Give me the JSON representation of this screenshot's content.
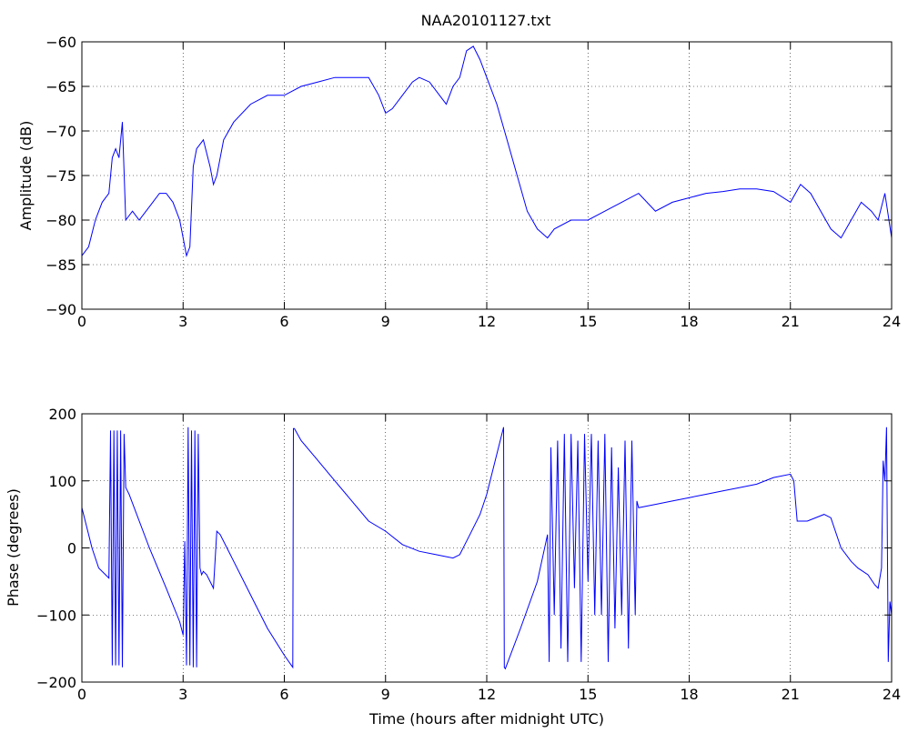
{
  "figure": {
    "title": "NAA20101127.txt"
  },
  "chart_data": [
    {
      "type": "line",
      "title": "NAA20101127.txt",
      "xlabel": "",
      "ylabel": "Amplitude (dB)",
      "xlim": [
        0,
        24
      ],
      "ylim": [
        -90,
        -60
      ],
      "xticks": [
        0,
        3,
        6,
        9,
        12,
        15,
        18,
        21,
        24
      ],
      "yticks": [
        -90,
        -85,
        -80,
        -75,
        -70,
        -65,
        -60
      ],
      "grid": true,
      "color": "#0000ff",
      "series": [
        {
          "x": [
            0.0,
            0.2,
            0.4,
            0.6,
            0.8,
            0.9,
            1.0,
            1.1,
            1.2,
            1.3,
            1.5,
            1.7,
            1.9,
            2.1,
            2.3,
            2.5,
            2.7,
            2.9,
            3.0,
            3.1,
            3.2,
            3.3,
            3.4,
            3.6,
            3.8,
            3.9,
            4.0,
            4.2,
            4.5,
            5.0,
            5.5,
            6.0,
            6.5,
            7.0,
            7.5,
            8.0,
            8.5,
            8.8,
            9.0,
            9.2,
            9.5,
            9.8,
            10.0,
            10.3,
            10.6,
            10.8,
            11.0,
            11.2,
            11.4,
            11.6,
            11.8,
            12.0,
            12.3,
            12.6,
            12.9,
            13.2,
            13.5,
            13.8,
            14.0,
            14.5,
            15.0,
            15.5,
            16.0,
            16.5,
            17.0,
            17.5,
            18.0,
            18.5,
            19.0,
            19.5,
            20.0,
            20.5,
            21.0,
            21.3,
            21.6,
            21.9,
            22.2,
            22.5,
            22.8,
            23.1,
            23.4,
            23.6,
            23.8,
            24.0
          ],
          "y": [
            -84,
            -83,
            -80,
            -78,
            -77,
            -73,
            -72,
            -73,
            -69,
            -80,
            -79,
            -80,
            -79,
            -78,
            -77,
            -77,
            -78,
            -80,
            -82,
            -84,
            -83,
            -74,
            -72,
            -71,
            -74,
            -76,
            -75,
            -71,
            -69,
            -67,
            -66,
            -66,
            -65,
            -64.5,
            -64,
            -64,
            -64,
            -66,
            -68,
            -67.5,
            -66,
            -64.5,
            -64,
            -64.5,
            -66,
            -67,
            -65,
            -64,
            -61,
            -60.5,
            -62,
            -64,
            -67,
            -71,
            -75,
            -79,
            -81,
            -82,
            -81,
            -80,
            -80,
            -79,
            -78,
            -77,
            -79,
            -78,
            -77.5,
            -77,
            -76.8,
            -76.5,
            -76.5,
            -76.8,
            -78,
            -76,
            -77,
            -79,
            -81,
            -82,
            -80,
            -78,
            -79,
            -80,
            -77,
            -82
          ]
        }
      ]
    },
    {
      "type": "line",
      "title": "",
      "xlabel": "Time (hours after midnight UTC)",
      "ylabel": "Phase (degrees)",
      "xlim": [
        0,
        24
      ],
      "ylim": [
        -200,
        200
      ],
      "xticks": [
        0,
        3,
        6,
        9,
        12,
        15,
        18,
        21,
        24
      ],
      "yticks": [
        -200,
        -100,
        0,
        100,
        200
      ],
      "grid": true,
      "color": "#0000ff",
      "series": [
        {
          "x": [
            0.0,
            0.1,
            0.3,
            0.5,
            0.7,
            0.8,
            0.85,
            0.9,
            0.95,
            1.0,
            1.05,
            1.1,
            1.15,
            1.2,
            1.25,
            1.3,
            1.35,
            1.4,
            2.0,
            2.5,
            2.9,
            3.0,
            3.05,
            3.1,
            3.15,
            3.2,
            3.25,
            3.3,
            3.35,
            3.4,
            3.45,
            3.5,
            3.55,
            3.6,
            3.7,
            3.8,
            3.9,
            4.0,
            4.1,
            4.5,
            5.0,
            5.5,
            6.0,
            6.25,
            6.27,
            6.3,
            6.5,
            7.0,
            7.5,
            8.0,
            8.5,
            9.0,
            9.5,
            10.0,
            10.5,
            11.0,
            11.2,
            11.5,
            11.8,
            12.0,
            12.2,
            12.4,
            12.5,
            12.52,
            12.55,
            13.0,
            13.5,
            13.8,
            13.85,
            13.9,
            14.0,
            14.1,
            14.2,
            14.3,
            14.4,
            14.5,
            14.6,
            14.7,
            14.8,
            14.9,
            15.0,
            15.1,
            15.2,
            15.3,
            15.4,
            15.5,
            15.6,
            15.7,
            15.8,
            15.9,
            16.0,
            16.1,
            16.2,
            16.3,
            16.4,
            16.45,
            16.5,
            17.0,
            17.5,
            18.0,
            18.5,
            19.0,
            19.5,
            20.0,
            20.5,
            21.0,
            21.1,
            21.2,
            21.5,
            22.0,
            22.2,
            22.5,
            22.8,
            23.0,
            23.3,
            23.5,
            23.6,
            23.7,
            23.75,
            23.8,
            23.85,
            23.9,
            23.95,
            24.0
          ],
          "y": [
            60,
            40,
            0,
            -30,
            -40,
            -45,
            175,
            -175,
            175,
            -175,
            175,
            -175,
            175,
            -178,
            170,
            90,
            85,
            80,
            0,
            -60,
            -110,
            -130,
            10,
            -175,
            180,
            -175,
            175,
            -178,
            175,
            -178,
            170,
            -30,
            -40,
            -35,
            -40,
            -50,
            -60,
            25,
            20,
            -20,
            -70,
            -120,
            -160,
            -178,
            178,
            178,
            160,
            130,
            100,
            70,
            40,
            25,
            5,
            -5,
            -10,
            -15,
            -10,
            20,
            50,
            80,
            120,
            160,
            180,
            -178,
            -180,
            -120,
            -50,
            20,
            -170,
            150,
            -100,
            160,
            -150,
            170,
            -170,
            170,
            -60,
            160,
            -170,
            170,
            -50,
            170,
            -100,
            160,
            -100,
            170,
            -170,
            150,
            -120,
            120,
            -100,
            160,
            -150,
            160,
            -100,
            70,
            60,
            65,
            70,
            75,
            80,
            85,
            90,
            95,
            105,
            110,
            100,
            40,
            40,
            50,
            45,
            0,
            -20,
            -30,
            -40,
            -55,
            -60,
            -30,
            130,
            100,
            180,
            -170,
            -80,
            -100
          ]
        }
      ]
    }
  ]
}
